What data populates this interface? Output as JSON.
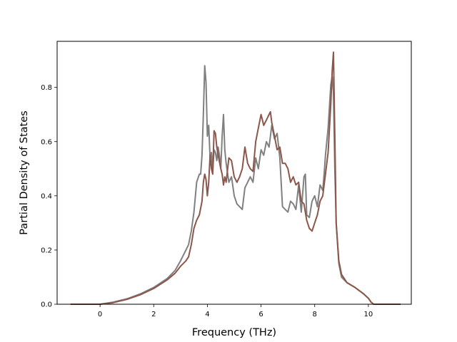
{
  "chart_data": {
    "type": "line",
    "title": "",
    "xlabel": "Frequency (THz)",
    "ylabel": "Partial Density of States",
    "xlim": [
      -1.6,
      11.6
    ],
    "ylim": [
      0,
      0.97
    ],
    "xticks": [
      0,
      2,
      4,
      6,
      8,
      10
    ],
    "yticks": [
      0.0,
      0.2,
      0.4,
      0.6,
      0.8
    ],
    "xtick_labels": [
      "0",
      "2",
      "4",
      "6",
      "8",
      "10"
    ],
    "ytick_labels": [
      "0.0",
      "0.2",
      "0.4",
      "0.6",
      "0.8"
    ],
    "grid": false,
    "legend": "none",
    "series": [
      {
        "color": "#808080",
        "x": [
          -1.1,
          0.0,
          0.5,
          1.0,
          1.5,
          2.0,
          2.5,
          2.8,
          3.0,
          3.2,
          3.3,
          3.4,
          3.5,
          3.6,
          3.7,
          3.75,
          3.8,
          3.85,
          3.9,
          3.95,
          4.0,
          4.05,
          4.1,
          4.15,
          4.2,
          4.25,
          4.3,
          4.35,
          4.4,
          4.45,
          4.5,
          4.55,
          4.6,
          4.65,
          4.7,
          4.8,
          4.9,
          5.0,
          5.1,
          5.2,
          5.3,
          5.4,
          5.5,
          5.6,
          5.7,
          5.8,
          5.9,
          6.0,
          6.1,
          6.2,
          6.3,
          6.4,
          6.5,
          6.6,
          6.7,
          6.8,
          6.9,
          7.0,
          7.1,
          7.2,
          7.3,
          7.4,
          7.5,
          7.6,
          7.65,
          7.7,
          7.8,
          7.9,
          8.0,
          8.1,
          8.2,
          8.3,
          8.35,
          8.4,
          8.5,
          8.6,
          8.65,
          8.7,
          8.75,
          8.8,
          8.9,
          9.0,
          9.2,
          9.5,
          9.8,
          10.0,
          10.1,
          10.2,
          11.2
        ],
        "y": [
          0.0,
          0.0,
          0.008,
          0.02,
          0.038,
          0.062,
          0.095,
          0.125,
          0.16,
          0.2,
          0.22,
          0.27,
          0.34,
          0.45,
          0.48,
          0.48,
          0.55,
          0.7,
          0.88,
          0.82,
          0.62,
          0.66,
          0.54,
          0.56,
          0.49,
          0.57,
          0.56,
          0.53,
          0.58,
          0.55,
          0.5,
          0.62,
          0.7,
          0.57,
          0.52,
          0.45,
          0.47,
          0.4,
          0.37,
          0.36,
          0.35,
          0.43,
          0.45,
          0.47,
          0.45,
          0.54,
          0.5,
          0.57,
          0.55,
          0.6,
          0.58,
          0.66,
          0.61,
          0.63,
          0.54,
          0.36,
          0.35,
          0.34,
          0.38,
          0.37,
          0.35,
          0.44,
          0.34,
          0.47,
          0.48,
          0.33,
          0.32,
          0.38,
          0.4,
          0.36,
          0.44,
          0.42,
          0.48,
          0.55,
          0.65,
          0.81,
          0.84,
          0.78,
          0.5,
          0.3,
          0.15,
          0.1,
          0.08,
          0.062,
          0.04,
          0.022,
          0.008,
          0.0,
          0.0
        ]
      },
      {
        "color": "#8c564b",
        "x": [
          -1.1,
          0.0,
          0.5,
          1.0,
          1.5,
          2.0,
          2.5,
          2.8,
          3.0,
          3.2,
          3.3,
          3.4,
          3.5,
          3.6,
          3.7,
          3.8,
          3.85,
          3.9,
          3.95,
          4.0,
          4.05,
          4.1,
          4.15,
          4.2,
          4.25,
          4.3,
          4.35,
          4.4,
          4.5,
          4.55,
          4.6,
          4.65,
          4.7,
          4.8,
          4.9,
          5.0,
          5.1,
          5.2,
          5.3,
          5.4,
          5.5,
          5.6,
          5.7,
          5.8,
          5.9,
          6.0,
          6.1,
          6.2,
          6.3,
          6.35,
          6.4,
          6.5,
          6.6,
          6.7,
          6.8,
          6.9,
          7.0,
          7.1,
          7.2,
          7.3,
          7.4,
          7.5,
          7.6,
          7.7,
          7.8,
          7.9,
          8.0,
          8.1,
          8.2,
          8.3,
          8.4,
          8.5,
          8.6,
          8.65,
          8.7,
          8.75,
          8.8,
          8.9,
          9.0,
          9.2,
          9.5,
          9.8,
          10.0,
          10.1,
          10.2,
          11.2
        ],
        "y": [
          0.0,
          0.0,
          0.006,
          0.018,
          0.035,
          0.058,
          0.09,
          0.115,
          0.14,
          0.16,
          0.175,
          0.22,
          0.28,
          0.31,
          0.33,
          0.38,
          0.45,
          0.48,
          0.46,
          0.4,
          0.45,
          0.55,
          0.5,
          0.48,
          0.64,
          0.63,
          0.58,
          0.55,
          0.5,
          0.48,
          0.44,
          0.47,
          0.45,
          0.54,
          0.53,
          0.47,
          0.45,
          0.47,
          0.5,
          0.58,
          0.52,
          0.5,
          0.49,
          0.6,
          0.65,
          0.7,
          0.66,
          0.68,
          0.7,
          0.71,
          0.67,
          0.62,
          0.57,
          0.58,
          0.52,
          0.52,
          0.5,
          0.45,
          0.47,
          0.44,
          0.45,
          0.38,
          0.37,
          0.31,
          0.28,
          0.27,
          0.3,
          0.33,
          0.38,
          0.4,
          0.48,
          0.56,
          0.74,
          0.86,
          0.93,
          0.62,
          0.3,
          0.16,
          0.11,
          0.08,
          0.062,
          0.04,
          0.022,
          0.008,
          0.0,
          0.0
        ]
      }
    ]
  }
}
